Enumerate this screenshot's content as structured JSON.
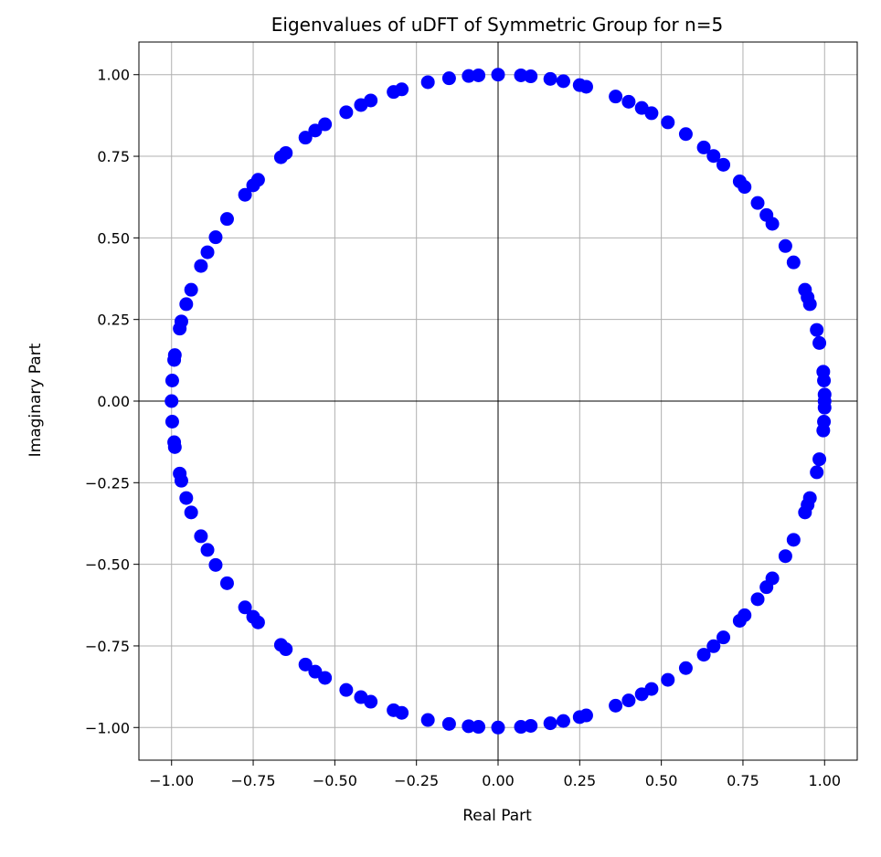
{
  "chart_data": {
    "type": "scatter",
    "title": "Eigenvalues of uDFT of Symmetric Group for n=5",
    "xlabel": "Real Part",
    "ylabel": "Imaginary Part",
    "xlim": [
      -1.1,
      1.1
    ],
    "ylim": [
      -1.1,
      1.1
    ],
    "xticks": [
      -1.0,
      -0.75,
      -0.5,
      -0.25,
      0.0,
      0.25,
      0.5,
      0.75,
      1.0
    ],
    "yticks": [
      -1.0,
      -0.75,
      -0.5,
      -0.25,
      0.0,
      0.25,
      0.5,
      0.75,
      1.0
    ],
    "xtick_labels": [
      "−1.00",
      "−0.75",
      "−0.50",
      "−0.25",
      "0.00",
      "0.25",
      "0.50",
      "0.75",
      "1.00"
    ],
    "ytick_labels": [
      "−1.00",
      "−0.75",
      "−0.50",
      "−0.25",
      "0.00",
      "0.25",
      "0.50",
      "0.75",
      "1.00"
    ],
    "grid": true,
    "reference_lines": {
      "x": 0,
      "y": 0
    },
    "colors": {
      "points": "#0000ff",
      "grid": "#b0b0b0",
      "reference": "#000000"
    },
    "points": [
      {
        "x": 0.0,
        "y": 1.0
      },
      {
        "x": 0.07,
        "y": 0.998
      },
      {
        "x": 0.1,
        "y": 0.995
      },
      {
        "x": 0.16,
        "y": 0.987
      },
      {
        "x": 0.2,
        "y": 0.98
      },
      {
        "x": 0.25,
        "y": 0.968
      },
      {
        "x": 0.27,
        "y": 0.963
      },
      {
        "x": 0.36,
        "y": 0.933
      },
      {
        "x": 0.4,
        "y": 0.917
      },
      {
        "x": 0.44,
        "y": 0.898
      },
      {
        "x": 0.47,
        "y": 0.882
      },
      {
        "x": 0.52,
        "y": 0.854
      },
      {
        "x": 0.575,
        "y": 0.818
      },
      {
        "x": 0.63,
        "y": 0.777
      },
      {
        "x": 0.66,
        "y": 0.751
      },
      {
        "x": 0.69,
        "y": 0.724
      },
      {
        "x": 0.74,
        "y": 0.673
      },
      {
        "x": 0.755,
        "y": 0.656
      },
      {
        "x": 0.795,
        "y": 0.607
      },
      {
        "x": 0.822,
        "y": 0.57
      },
      {
        "x": 0.84,
        "y": 0.543
      },
      {
        "x": 0.88,
        "y": 0.475
      },
      {
        "x": 0.905,
        "y": 0.425
      },
      {
        "x": 0.94,
        "y": 0.341
      },
      {
        "x": 0.948,
        "y": 0.318
      },
      {
        "x": 0.955,
        "y": 0.297
      },
      {
        "x": 0.976,
        "y": 0.218
      },
      {
        "x": 0.984,
        "y": 0.178
      },
      {
        "x": 0.996,
        "y": 0.09
      },
      {
        "x": 0.998,
        "y": 0.063
      },
      {
        "x": 1.0,
        "y": 0.0
      },
      {
        "x": 1.0,
        "y": 0.02
      },
      {
        "x": 0.0,
        "y": -1.0
      },
      {
        "x": 0.07,
        "y": -0.998
      },
      {
        "x": 0.1,
        "y": -0.995
      },
      {
        "x": 0.16,
        "y": -0.987
      },
      {
        "x": 0.2,
        "y": -0.98
      },
      {
        "x": 0.25,
        "y": -0.968
      },
      {
        "x": 0.27,
        "y": -0.963
      },
      {
        "x": 0.36,
        "y": -0.933
      },
      {
        "x": 0.4,
        "y": -0.917
      },
      {
        "x": 0.44,
        "y": -0.898
      },
      {
        "x": 0.47,
        "y": -0.882
      },
      {
        "x": 0.52,
        "y": -0.854
      },
      {
        "x": 0.575,
        "y": -0.818
      },
      {
        "x": 0.63,
        "y": -0.777
      },
      {
        "x": 0.66,
        "y": -0.751
      },
      {
        "x": 0.69,
        "y": -0.724
      },
      {
        "x": 0.74,
        "y": -0.673
      },
      {
        "x": 0.755,
        "y": -0.656
      },
      {
        "x": 0.795,
        "y": -0.607
      },
      {
        "x": 0.822,
        "y": -0.57
      },
      {
        "x": 0.84,
        "y": -0.543
      },
      {
        "x": 0.88,
        "y": -0.475
      },
      {
        "x": 0.905,
        "y": -0.425
      },
      {
        "x": 0.94,
        "y": -0.341
      },
      {
        "x": 0.948,
        "y": -0.318
      },
      {
        "x": 0.955,
        "y": -0.297
      },
      {
        "x": 0.976,
        "y": -0.218
      },
      {
        "x": 0.984,
        "y": -0.178
      },
      {
        "x": 0.996,
        "y": -0.09
      },
      {
        "x": 0.998,
        "y": -0.063
      },
      {
        "x": 1.0,
        "y": -0.02
      },
      {
        "x": -0.06,
        "y": 0.998
      },
      {
        "x": -0.09,
        "y": 0.996
      },
      {
        "x": -0.15,
        "y": 0.989
      },
      {
        "x": -0.215,
        "y": 0.977
      },
      {
        "x": -0.295,
        "y": 0.955
      },
      {
        "x": -0.32,
        "y": 0.947
      },
      {
        "x": -0.39,
        "y": 0.921
      },
      {
        "x": -0.42,
        "y": 0.907
      },
      {
        "x": -0.465,
        "y": 0.885
      },
      {
        "x": -0.53,
        "y": 0.848
      },
      {
        "x": -0.56,
        "y": 0.829
      },
      {
        "x": -0.59,
        "y": 0.807
      },
      {
        "x": -0.65,
        "y": 0.76
      },
      {
        "x": -0.665,
        "y": 0.747
      },
      {
        "x": -0.735,
        "y": 0.678
      },
      {
        "x": -0.75,
        "y": 0.661
      },
      {
        "x": -0.775,
        "y": 0.632
      },
      {
        "x": -0.83,
        "y": 0.558
      },
      {
        "x": -0.865,
        "y": 0.502
      },
      {
        "x": -0.89,
        "y": 0.456
      },
      {
        "x": -0.91,
        "y": 0.414
      },
      {
        "x": -0.94,
        "y": 0.341
      },
      {
        "x": -0.955,
        "y": 0.297
      },
      {
        "x": -0.97,
        "y": 0.244
      },
      {
        "x": -0.975,
        "y": 0.222
      },
      {
        "x": -0.99,
        "y": 0.141
      },
      {
        "x": -0.992,
        "y": 0.126
      },
      {
        "x": -0.998,
        "y": 0.063
      },
      {
        "x": -1.0,
        "y": 0.0
      },
      {
        "x": -0.06,
        "y": -0.998
      },
      {
        "x": -0.09,
        "y": -0.996
      },
      {
        "x": -0.15,
        "y": -0.989
      },
      {
        "x": -0.215,
        "y": -0.977
      },
      {
        "x": -0.295,
        "y": -0.955
      },
      {
        "x": -0.32,
        "y": -0.947
      },
      {
        "x": -0.39,
        "y": -0.921
      },
      {
        "x": -0.42,
        "y": -0.907
      },
      {
        "x": -0.465,
        "y": -0.885
      },
      {
        "x": -0.53,
        "y": -0.848
      },
      {
        "x": -0.56,
        "y": -0.829
      },
      {
        "x": -0.59,
        "y": -0.807
      },
      {
        "x": -0.65,
        "y": -0.76
      },
      {
        "x": -0.665,
        "y": -0.747
      },
      {
        "x": -0.735,
        "y": -0.678
      },
      {
        "x": -0.75,
        "y": -0.661
      },
      {
        "x": -0.775,
        "y": -0.632
      },
      {
        "x": -0.83,
        "y": -0.558
      },
      {
        "x": -0.865,
        "y": -0.502
      },
      {
        "x": -0.89,
        "y": -0.456
      },
      {
        "x": -0.91,
        "y": -0.414
      },
      {
        "x": -0.94,
        "y": -0.341
      },
      {
        "x": -0.955,
        "y": -0.297
      },
      {
        "x": -0.97,
        "y": -0.244
      },
      {
        "x": -0.975,
        "y": -0.222
      },
      {
        "x": -0.99,
        "y": -0.141
      },
      {
        "x": -0.992,
        "y": -0.126
      },
      {
        "x": -0.998,
        "y": -0.063
      }
    ]
  }
}
